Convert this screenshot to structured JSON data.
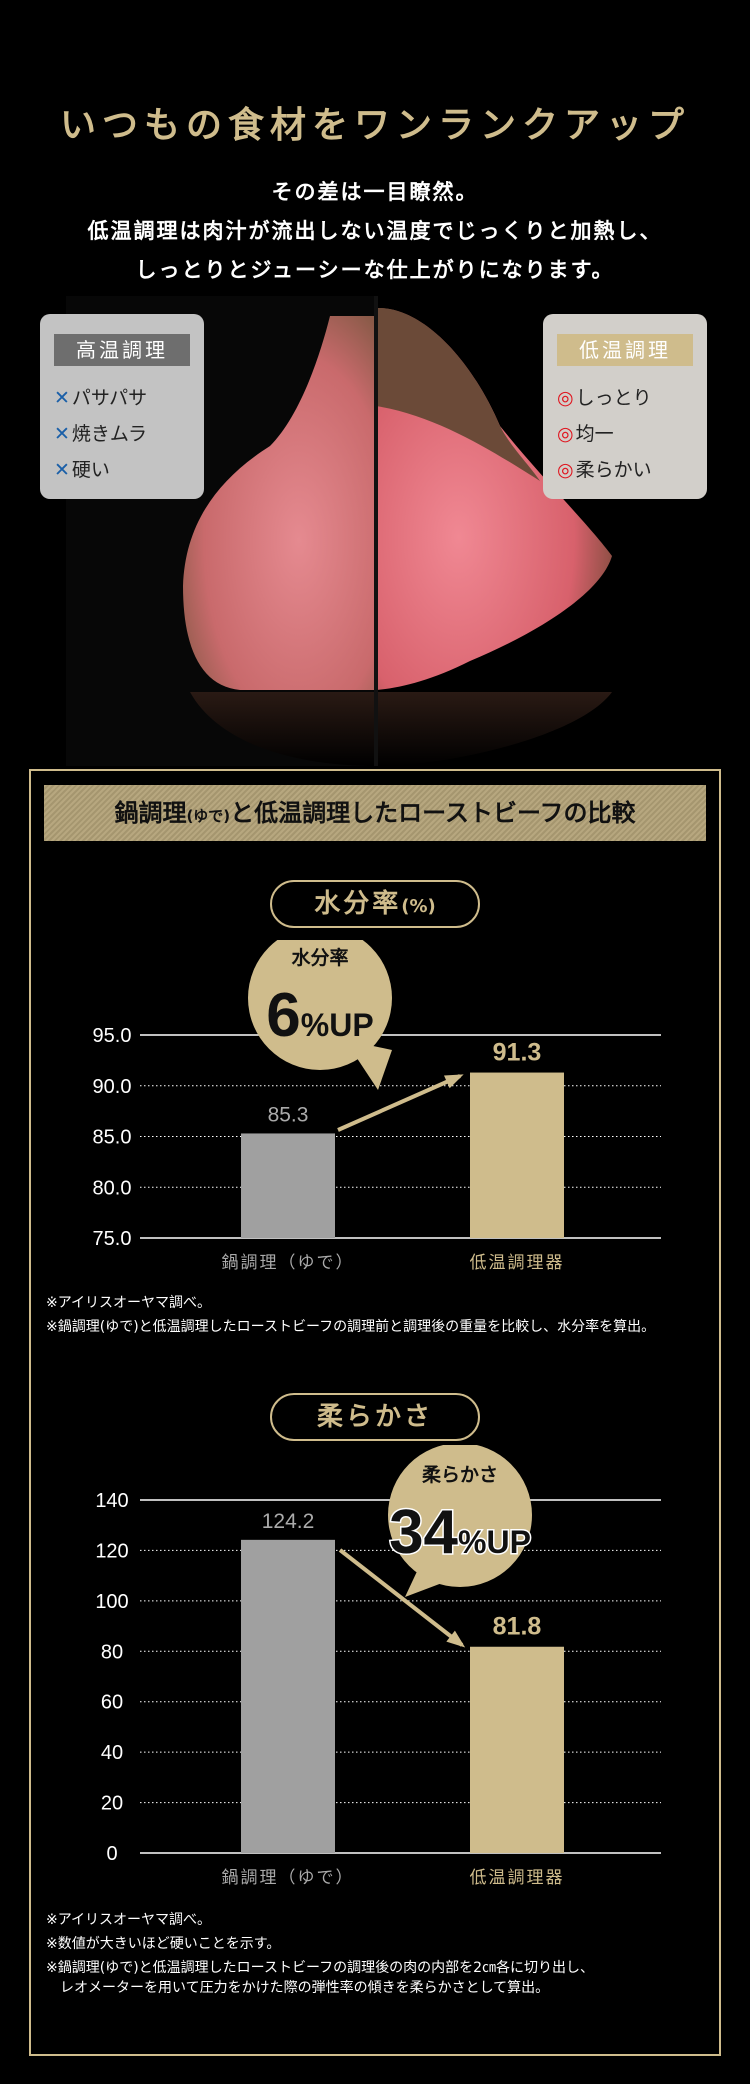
{
  "header": {
    "title": "いつもの食材をワンランクアップ",
    "lines": [
      "その差は一目瞭然。",
      "低温調理は肉汁が流出しない温度でじっくりと加熱し、",
      "しっとりとジューシーな仕上がりになります。"
    ]
  },
  "high_temp": {
    "title": "高温調理",
    "mark": "✕",
    "mark_color": "#1a5fa8",
    "items": [
      "パサパサ",
      "焼きムラ",
      "硬い"
    ]
  },
  "low_temp": {
    "title": "低温調理",
    "mark": "◎",
    "mark_color": "#e0141e",
    "items": [
      "しっとり",
      "均一",
      "柔らかい"
    ]
  },
  "comparison": {
    "title_a": "鍋調理",
    "title_paren": "(ゆで)",
    "title_b": "と低温調理したローストビーフの比較"
  },
  "colors": {
    "gold": "#cfbc8c",
    "gray_bar": "#a0a0a0"
  },
  "chart_data": [
    {
      "type": "bar",
      "title": "水分率",
      "title_unit": "(%)",
      "categories": [
        "鍋調理（ゆで）",
        "低温調理器"
      ],
      "values": [
        85.3,
        91.3
      ],
      "value_labels": [
        "85.3",
        "91.3"
      ],
      "ylim": [
        75,
        95
      ],
      "ticks": [
        "75.0",
        "80.0",
        "85.0",
        "90.0",
        "95.0"
      ],
      "tick_values": [
        75,
        80,
        85,
        90,
        95
      ],
      "grid": true,
      "bubble": {
        "label": "水分率",
        "big": "6",
        "suffix": "%UP"
      },
      "notes": [
        "※アイリスオーヤマ調べ。",
        "※鍋調理(ゆで)と低温調理したローストビーフの調理前と調理後の重量を比較し、水分率を算出。"
      ]
    },
    {
      "type": "bar",
      "title": "柔らかさ",
      "title_unit": "",
      "categories": [
        "鍋調理（ゆで）",
        "低温調理器"
      ],
      "values": [
        124.2,
        81.8
      ],
      "value_labels": [
        "124.2",
        "81.8"
      ],
      "ylim": [
        0,
        140
      ],
      "ticks": [
        "0",
        "20",
        "40",
        "60",
        "80",
        "100",
        "120",
        "140"
      ],
      "tick_values": [
        0,
        20,
        40,
        60,
        80,
        100,
        120,
        140
      ],
      "grid": true,
      "bubble": {
        "label": "柔らかさ",
        "big": "34",
        "suffix": "%UP"
      },
      "notes": [
        "※アイリスオーヤマ調べ。",
        "※数値が大きいほど硬いことを示す。",
        "※鍋調理(ゆで)と低温調理したローストビーフの調理後の肉の内部を2㎝各に切り出し、",
        "　レオメーターを用いて圧力をかけた際の弾性率の傾きを柔らかさとして算出。"
      ]
    }
  ]
}
